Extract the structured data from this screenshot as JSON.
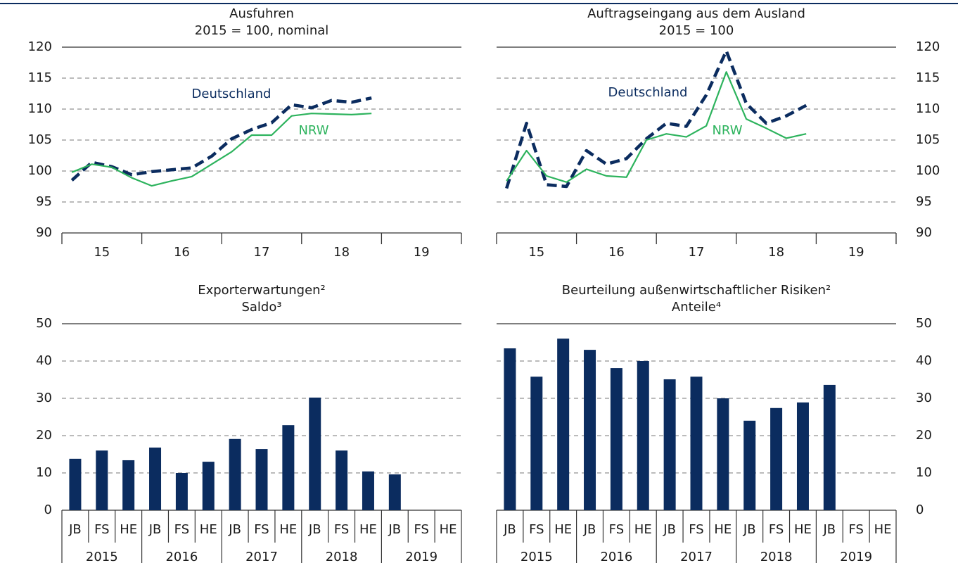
{
  "chart_data": [
    {
      "type": "line",
      "title": "Ausfuhren",
      "subtitle": "2015 = 100, nominal",
      "categories": [
        null,
        null,
        null,
        null,
        null,
        null,
        null,
        null,
        null,
        null,
        null,
        null,
        null,
        null,
        null,
        null,
        null,
        null,
        null,
        null
      ],
      "groups": [
        "15",
        "16",
        "17",
        "18",
        "19"
      ],
      "y_axis_side": "left",
      "ylim": [
        90,
        120
      ],
      "yticks": [
        90,
        95,
        100,
        105,
        110,
        115,
        120
      ],
      "grid": true,
      "series": [
        {
          "name": "Deutschland",
          "color": "#0b2c5f",
          "dashed": true,
          "values": [
            98.5,
            101.4,
            100.7,
            99.4,
            99.9,
            100.2,
            100.5,
            102.4,
            105.2,
            106.7,
            107.8,
            110.7,
            110.2,
            111.4,
            111.1,
            111.8,
            null,
            null,
            null,
            null
          ]
        },
        {
          "name": "NRW",
          "color": "#2db35d",
          "dashed": false,
          "values": [
            99.8,
            101.1,
            100.6,
            98.9,
            97.6,
            98.4,
            99.1,
            101.1,
            103.1,
            105.8,
            105.8,
            108.9,
            109.3,
            109.2,
            109.1,
            109.3,
            null,
            null,
            null,
            null
          ]
        }
      ]
    },
    {
      "type": "line",
      "title": "Auftragseingang aus dem Ausland",
      "subtitle": "2015 = 100",
      "categories": [
        null,
        null,
        null,
        null,
        null,
        null,
        null,
        null,
        null,
        null,
        null,
        null,
        null,
        null,
        null,
        null,
        null,
        null,
        null,
        null
      ],
      "groups": [
        "15",
        "16",
        "17",
        "18",
        "19"
      ],
      "y_axis_side": "right",
      "ylim": [
        90,
        120
      ],
      "yticks": [
        90,
        95,
        100,
        105,
        110,
        115,
        120
      ],
      "grid": true,
      "series": [
        {
          "name": "Deutschland",
          "color": "#0b2c5f",
          "dashed": true,
          "values": [
            97.2,
            107.7,
            97.8,
            97.5,
            103.3,
            101.1,
            102.0,
            105.2,
            107.7,
            107.2,
            112.3,
            119.4,
            110.9,
            107.7,
            108.9,
            110.6,
            null,
            null,
            null,
            null
          ]
        },
        {
          "name": "NRW",
          "color": "#2db35d",
          "dashed": false,
          "values": [
            98.4,
            103.3,
            99.2,
            98.2,
            100.3,
            99.2,
            99.0,
            105.0,
            106.0,
            105.5,
            107.3,
            116.0,
            108.4,
            106.9,
            105.3,
            106.0,
            null,
            null,
            null,
            null
          ]
        }
      ]
    },
    {
      "type": "bar",
      "title": "Exporterwartungen²",
      "subtitle": "Saldo³",
      "categories": [
        "JB",
        "FS",
        "HE",
        "JB",
        "FS",
        "HE",
        "JB",
        "FS",
        "HE",
        "JB",
        "FS",
        "HE",
        "JB",
        "FS",
        "HE"
      ],
      "groups": [
        "2015",
        "2016",
        "2017",
        "2018",
        "2019"
      ],
      "y_axis_side": "left",
      "ylim": [
        0,
        50
      ],
      "yticks": [
        0,
        10,
        20,
        30,
        40,
        50
      ],
      "grid": true,
      "color": "#0b2c5f",
      "values": [
        13.8,
        16.0,
        13.4,
        16.8,
        10.0,
        13.0,
        19.1,
        16.4,
        22.8,
        30.2,
        16.0,
        10.4,
        9.6,
        null,
        null
      ]
    },
    {
      "type": "bar",
      "title": "Beurteilung außenwirtschaftlicher Risiken²",
      "subtitle": "Anteile⁴",
      "categories": [
        "JB",
        "FS",
        "HE",
        "JB",
        "FS",
        "HE",
        "JB",
        "FS",
        "HE",
        "JB",
        "FS",
        "HE",
        "JB",
        "FS",
        "HE"
      ],
      "groups": [
        "2015",
        "2016",
        "2017",
        "2018",
        "2019"
      ],
      "y_axis_side": "right",
      "ylim": [
        0,
        50
      ],
      "yticks": [
        0,
        10,
        20,
        30,
        40,
        50
      ],
      "grid": true,
      "color": "#0b2c5f",
      "values": [
        43.4,
        35.8,
        46.0,
        43.0,
        38.1,
        40.0,
        35.1,
        35.8,
        30.0,
        24.0,
        27.4,
        28.9,
        33.6,
        null,
        null
      ]
    }
  ]
}
